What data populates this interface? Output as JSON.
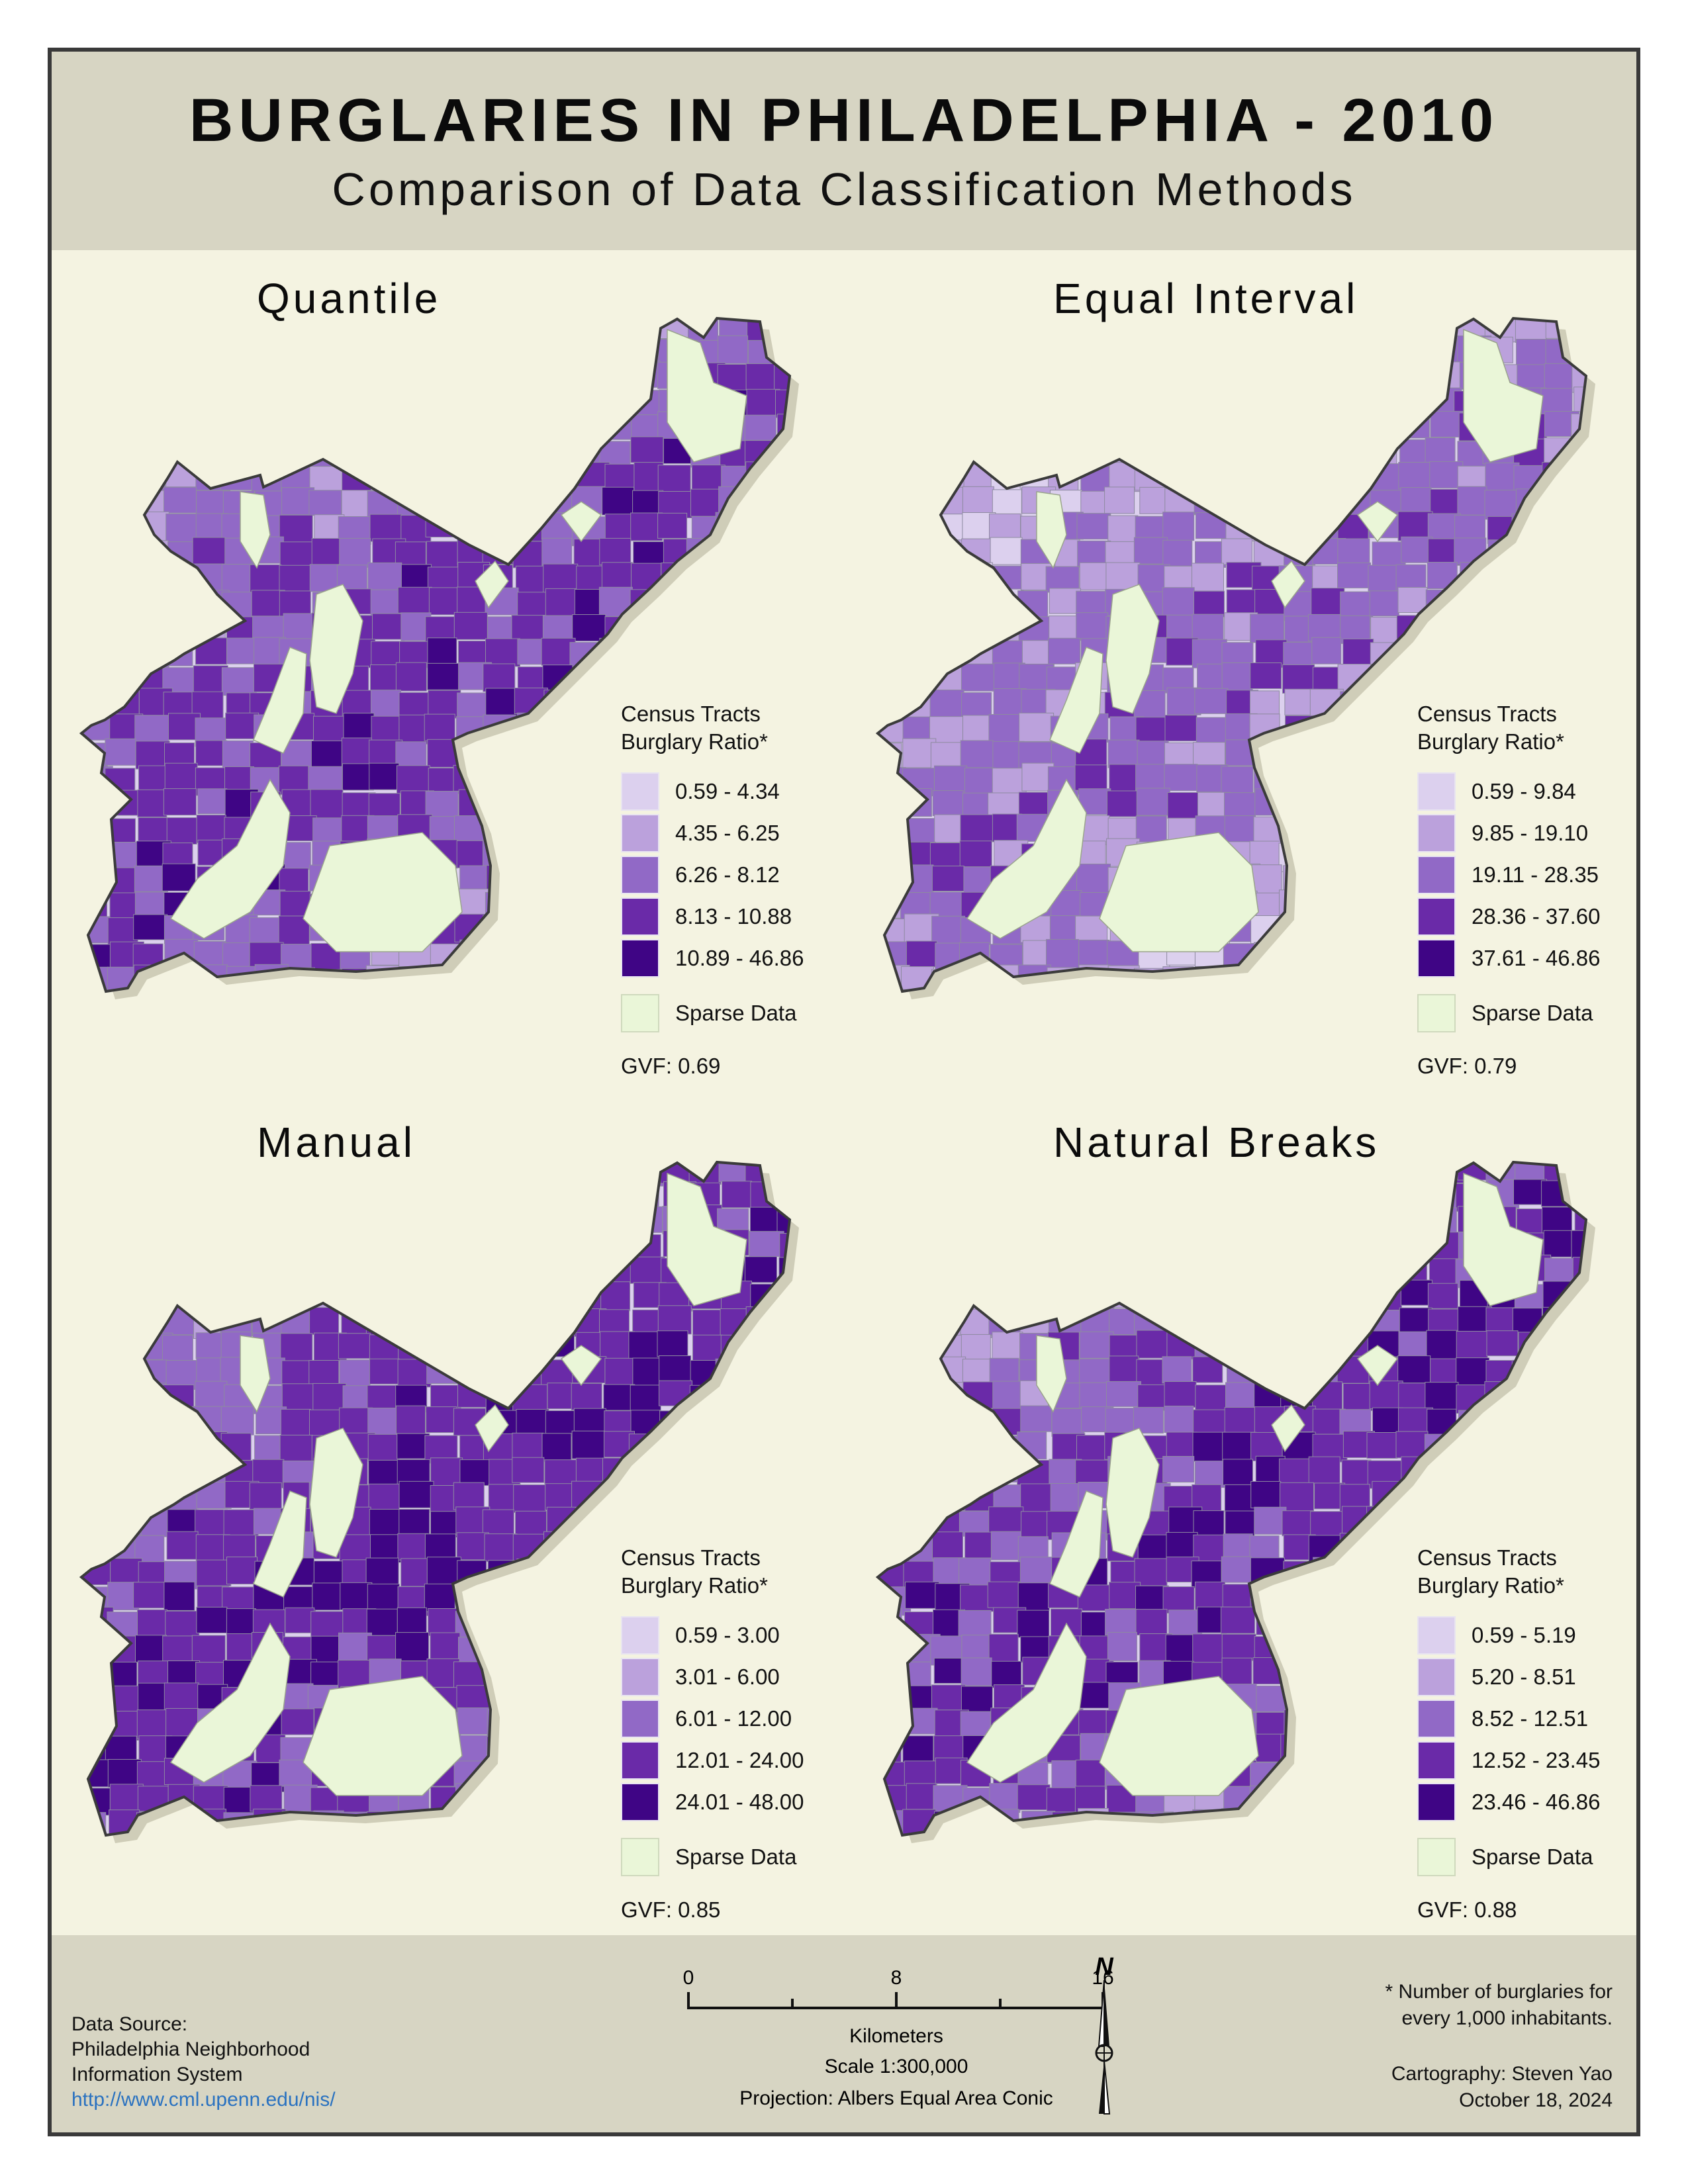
{
  "title": "BURGLARIES IN PHILADELPHIA - 2010",
  "subtitle": "Comparison of Data Classification Methods",
  "colors": {
    "class_1": "#dcd0ee",
    "class_2": "#bba1dc",
    "class_3": "#9169c6",
    "class_4": "#6a2aa8",
    "class_5": "#3f0585",
    "sparse": "#eaf6d8",
    "frame_bg": "#f4f3e1",
    "header_bg": "#d7d5c3",
    "link": "#2a72c0"
  },
  "legend_heading": [
    "Census Tracts",
    "Burglary Ratio*"
  ],
  "sparse_label": "Sparse Data",
  "panels": [
    {
      "name": "Quantile",
      "classes": [
        "0.59 - 4.34",
        "4.35 - 6.25",
        "6.26 - 8.12",
        "8.13 - 10.88",
        "10.89 - 46.86"
      ],
      "gvf": "GVF: 0.69"
    },
    {
      "name": "Equal Interval",
      "classes": [
        "0.59 - 9.84",
        "9.85 - 19.10",
        "19.11 - 28.35",
        "28.36 - 37.60",
        "37.61 - 46.86"
      ],
      "gvf": "GVF: 0.79"
    },
    {
      "name": "Manual",
      "classes": [
        "0.59 - 3.00",
        "3.01 - 6.00",
        "6.01 - 12.00",
        "12.01 - 24.00",
        "24.01 - 48.00"
      ],
      "gvf": "GVF: 0.85"
    },
    {
      "name": "Natural Breaks",
      "classes": [
        "0.59 - 5.19",
        "5.20 - 8.51",
        "8.52 - 12.51",
        "12.52 - 23.45",
        "23.46 - 46.86"
      ],
      "gvf": "GVF: 0.88"
    }
  ],
  "scale": {
    "ticks": [
      "0",
      "8",
      "16"
    ],
    "unit": "Kilometers",
    "ratio": "Scale  1:300,000",
    "projection": "Projection: Albers Equal Area Conic"
  },
  "north_label": "N",
  "data_source": {
    "heading": "Data Source:",
    "line1": "Philadelphia Neighborhood",
    "line2": "Information System",
    "url": "http://www.cml.upenn.edu/nis/"
  },
  "footnote": {
    "line1": "*  Number of burglaries for",
    "line2": "every 1,000 inhabitants."
  },
  "credit": {
    "line1": "Cartography: Steven Yao",
    "line2": "October 18, 2024"
  }
}
